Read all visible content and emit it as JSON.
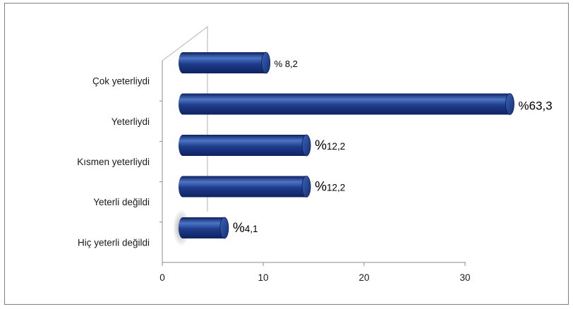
{
  "chart_data": {
    "type": "bar",
    "orientation": "horizontal",
    "style": "3d-cylinder",
    "categories": [
      "Çok yeterliydi",
      "Yeterliydi",
      "Kısmen yeterliydi",
      "Yeterli değildi",
      "Hiç yeterli değildi"
    ],
    "values": [
      8.2,
      63.3,
      12.2,
      12.2,
      4.1
    ],
    "data_labels": [
      "% 8,2",
      "%63,3",
      "%12,2",
      "%12,2",
      "%4,1"
    ],
    "xlim": [
      0,
      30
    ],
    "xticks": [
      "0",
      "10",
      "20",
      "30"
    ],
    "grid": false,
    "legend": "none",
    "bar_color": "#1f3d8c",
    "bar_highlight": "#4d74c4",
    "bar_shadow": "#0e2260"
  }
}
